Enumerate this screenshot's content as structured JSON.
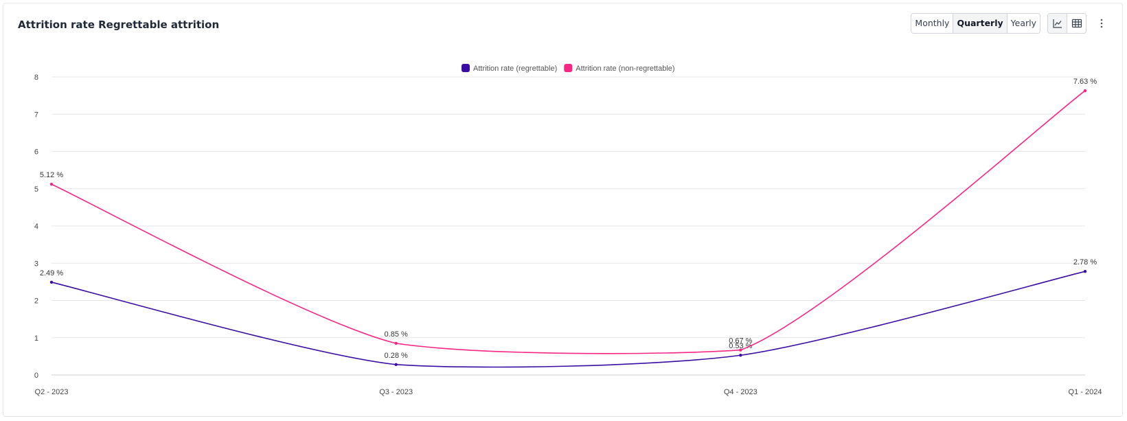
{
  "header": {
    "title": "Attrition rate Regrettable attrition"
  },
  "toolbar": {
    "periods": [
      "Monthly",
      "Quarterly",
      "Yearly"
    ],
    "active_period": "Quarterly",
    "view_icons": [
      "line-chart-icon",
      "table-icon"
    ],
    "active_view": "line-chart-icon",
    "more_icon": "more-vertical-icon"
  },
  "chart_data": {
    "type": "line",
    "title": "",
    "xlabel": "",
    "ylabel": "",
    "categories": [
      "Q2 - 2023",
      "Q3 - 2023",
      "Q4 - 2023",
      "Q1 - 2024"
    ],
    "ylim": [
      0,
      8
    ],
    "yticks": [
      0,
      1,
      2,
      3,
      4,
      5,
      6,
      7,
      8
    ],
    "grid": true,
    "legend": "top-center",
    "series": [
      {
        "name": "Attrition rate (regrettable)",
        "color": "#3a0ca3",
        "values": [
          2.49,
          0.28,
          0.53,
          2.78
        ],
        "labels": [
          "2.49 %",
          "0.28 %",
          "0.53 %",
          "2.78 %"
        ]
      },
      {
        "name": "Attrition rate (non-regrettable)",
        "color": "#f72585",
        "values": [
          5.12,
          0.85,
          0.67,
          7.63
        ],
        "labels": [
          "5.12 %",
          "0.85 %",
          "0.67 %",
          "7.63 %"
        ]
      }
    ]
  }
}
